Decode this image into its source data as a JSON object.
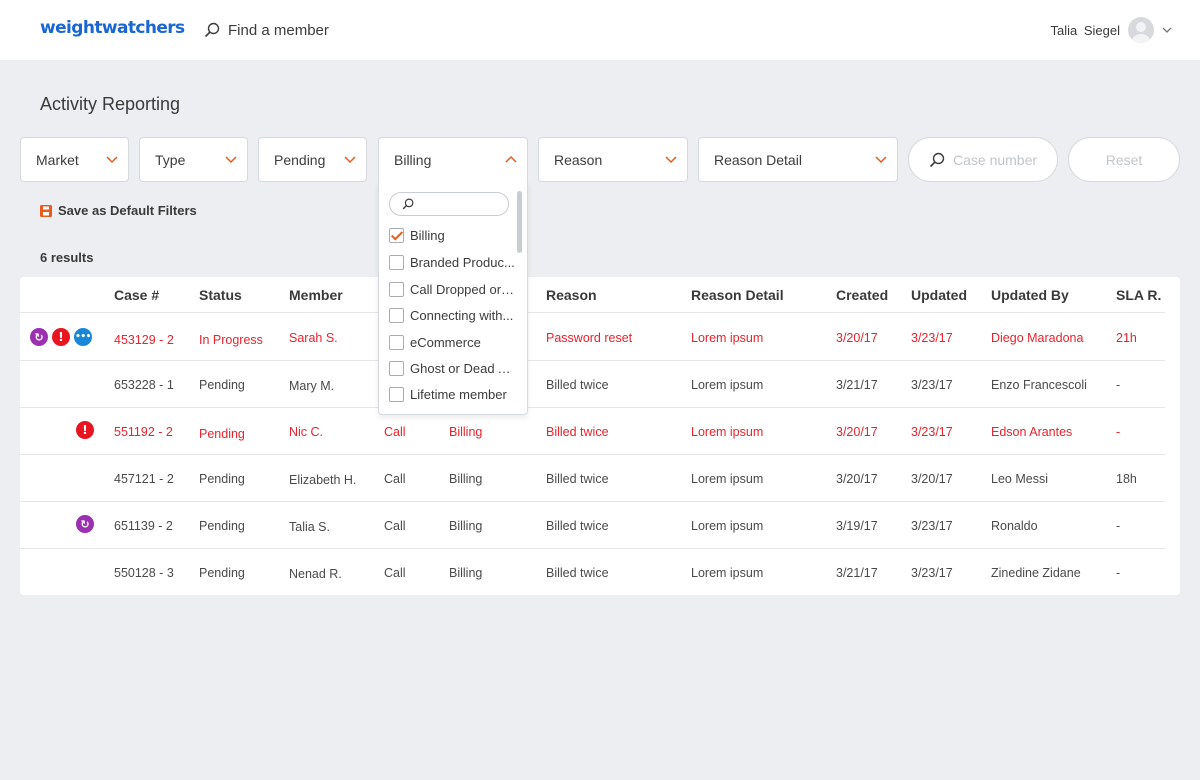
{
  "header": {
    "logo": "weightwatchers",
    "search_placeholder": "Find a member",
    "user_name": "Talia Siegel"
  },
  "page": {
    "title": "Activity Reporting",
    "save_default_label": "Save as Default Filters",
    "results_count": "6 results"
  },
  "filters": {
    "market": "Market",
    "type": "Type",
    "pending": "Pending",
    "billing": "Billing",
    "reason": "Reason",
    "reason_detail": "Reason Detail",
    "case_placeholder": "Case number",
    "reset": "Reset"
  },
  "dropdown": {
    "items": [
      {
        "label": "Billing",
        "checked": true
      },
      {
        "label": "Branded Produc...",
        "checked": false
      },
      {
        "label": "Call Dropped or ...",
        "checked": false
      },
      {
        "label": "Connecting with...",
        "checked": false
      },
      {
        "label": "eCommerce",
        "checked": false
      },
      {
        "label": "Ghost or Dead A...",
        "checked": false
      },
      {
        "label": "Lifetime member",
        "checked": false
      }
    ]
  },
  "table": {
    "headers": {
      "case": "Case #",
      "status": "Status",
      "member": "Member",
      "reason": "Reason",
      "reason_detail": "Reason Detail",
      "created": "Created",
      "updated": "Updated",
      "updated_by": "Updated By",
      "sla": "SLA R."
    },
    "rows": [
      {
        "case": "453129 - 2",
        "status": "In Progress",
        "member": "Sarah S.",
        "channel": "",
        "type": "",
        "reason": "Password reset",
        "reason_detail": "Lorem ipsum",
        "created": "3/20/17",
        "updated": "3/23/17",
        "updated_by": "Diego Maradona",
        "sla": "21h"
      },
      {
        "case": "653228 - 1",
        "status": "Pending",
        "member": "Mary M.",
        "channel": "",
        "type": "",
        "reason": "Billed twice",
        "reason_detail": "Lorem ipsum",
        "created": "3/21/17",
        "updated": "3/23/17",
        "updated_by": "Enzo Francescoli",
        "sla": "-"
      },
      {
        "case": "551192 - 2",
        "status": "Pending",
        "member": "Nic C.",
        "channel": "Call",
        "type": "Billing",
        "reason": "Billed twice",
        "reason_detail": "Lorem ipsum",
        "created": "3/20/17",
        "updated": "3/23/17",
        "updated_by": "Edson Arantes",
        "sla": "-"
      },
      {
        "case": "457121 - 2",
        "status": "Pending",
        "member": "Elizabeth H.",
        "channel": "Call",
        "type": "Billing",
        "reason": "Billed twice",
        "reason_detail": "Lorem ipsum",
        "created": "3/20/17",
        "updated": "3/20/17",
        "updated_by": "Leo Messi",
        "sla": "18h"
      },
      {
        "case": "651139 - 2",
        "status": "Pending",
        "member": "Talia S.",
        "channel": "Call",
        "type": "Billing",
        "reason": "Billed twice",
        "reason_detail": "Lorem ipsum",
        "created": "3/19/17",
        "updated": "3/23/17",
        "updated_by": "Ronaldo",
        "sla": "-"
      },
      {
        "case": "550128 - 3",
        "status": "Pending",
        "member": "Nenad R.",
        "channel": "Call",
        "type": "Billing",
        "reason": "Billed twice",
        "reason_detail": "Lorem ipsum",
        "created": "3/21/17",
        "updated": "3/23/17",
        "updated_by": "Zinedine Zidane",
        "sla": "-"
      }
    ]
  },
  "colors": {
    "brand": "#1a66d2",
    "accent": "#e85a1e",
    "alert": "#e8232c",
    "sync": "#9b30b3",
    "info": "#1a86d8"
  }
}
